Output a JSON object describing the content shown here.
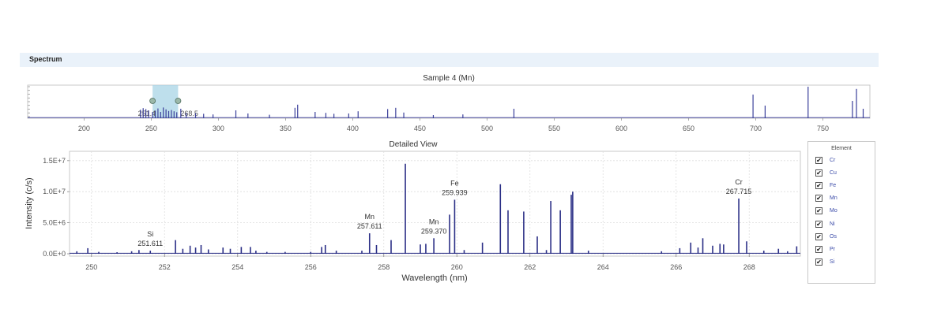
{
  "panel": {
    "title": "Spectrum"
  },
  "colors": {
    "series": "#2b2f86",
    "overview_series": "#3a3f9a",
    "selection": "#a8d4e6",
    "header_bg": "#eaf2fa"
  },
  "legend": {
    "title": "Element",
    "items": [
      {
        "label": "Cr",
        "checked": true
      },
      {
        "label": "Cu",
        "checked": true
      },
      {
        "label": "Fe",
        "checked": true
      },
      {
        "label": "Mn",
        "checked": true
      },
      {
        "label": "Mo",
        "checked": true
      },
      {
        "label": "Ni",
        "checked": true
      },
      {
        "label": "Os",
        "checked": true
      },
      {
        "label": "Pr",
        "checked": true
      },
      {
        "label": "Si",
        "checked": true
      }
    ]
  },
  "chart_data": [
    {
      "id": "overview",
      "type": "bar",
      "title": "Sample 4 (Mn)",
      "xlabel": "",
      "ylabel": "",
      "xlim": [
        158,
        785
      ],
      "ylim": [
        0,
        1
      ],
      "xticks": [
        200,
        250,
        300,
        350,
        400,
        450,
        500,
        550,
        600,
        650,
        700,
        750
      ],
      "grid": false,
      "selection": {
        "range": [
          251,
          270
        ],
        "labels": [
          "251.4",
          "268.5"
        ]
      },
      "peaks": [
        [
          242,
          0.27
        ],
        [
          244,
          0.32
        ],
        [
          246,
          0.29
        ],
        [
          248,
          0.25
        ],
        [
          251,
          0.2
        ],
        [
          253,
          0.24
        ],
        [
          255,
          0.31
        ],
        [
          257,
          0.2
        ],
        [
          259,
          0.34
        ],
        [
          261,
          0.28
        ],
        [
          263,
          0.23
        ],
        [
          265,
          0.26
        ],
        [
          267,
          0.22
        ],
        [
          269,
          0.19
        ],
        [
          272,
          0.3
        ],
        [
          276,
          0.17
        ],
        [
          283,
          0.16
        ],
        [
          289,
          0.14
        ],
        [
          296,
          0.12
        ],
        [
          313,
          0.25
        ],
        [
          322,
          0.15
        ],
        [
          338,
          0.11
        ],
        [
          357,
          0.33
        ],
        [
          359,
          0.43
        ],
        [
          372,
          0.2
        ],
        [
          380,
          0.17
        ],
        [
          386,
          0.14
        ],
        [
          397,
          0.15
        ],
        [
          404,
          0.22
        ],
        [
          426,
          0.29
        ],
        [
          432,
          0.33
        ],
        [
          438,
          0.18
        ],
        [
          460,
          0.1
        ],
        [
          482,
          0.12
        ],
        [
          520,
          0.3
        ],
        [
          698,
          0.75
        ],
        [
          707,
          0.4
        ],
        [
          739,
          1.0
        ],
        [
          772,
          0.55
        ],
        [
          775,
          0.93
        ],
        [
          780,
          0.3
        ]
      ]
    },
    {
      "id": "detail",
      "type": "bar",
      "title": "Detailed View",
      "xlabel": "Wavelength (nm)",
      "ylabel": "Intensity (c/s)",
      "xlim": [
        249.4,
        269.4
      ],
      "ylim": [
        0,
        16500000
      ],
      "xticks": [
        250,
        252,
        254,
        256,
        258,
        260,
        262,
        264,
        266,
        268
      ],
      "yticks": [
        {
          "value": 0,
          "label": "0.0E+0"
        },
        {
          "value": 5000000,
          "label": "5.0E+6"
        },
        {
          "value": 10000000,
          "label": "1.0E+7"
        },
        {
          "value": 15000000,
          "label": "1.5E+7"
        }
      ],
      "grid": true,
      "peaks": [
        [
          249.6,
          400000
        ],
        [
          249.9,
          900000
        ],
        [
          250.2,
          300000
        ],
        [
          250.7,
          250000
        ],
        [
          251.1,
          400000
        ],
        [
          251.3,
          600000
        ],
        [
          251.611,
          500000
        ],
        [
          252.3,
          2200000
        ],
        [
          252.5,
          800000
        ],
        [
          252.7,
          1300000
        ],
        [
          252.85,
          1000000
        ],
        [
          253.0,
          1400000
        ],
        [
          253.2,
          700000
        ],
        [
          253.6,
          1000000
        ],
        [
          253.8,
          800000
        ],
        [
          254.1,
          1100000
        ],
        [
          254.35,
          1100000
        ],
        [
          254.5,
          500000
        ],
        [
          254.8,
          300000
        ],
        [
          255.3,
          300000
        ],
        [
          256.0,
          300000
        ],
        [
          256.3,
          1100000
        ],
        [
          256.4,
          1400000
        ],
        [
          256.7,
          500000
        ],
        [
          257.4,
          500000
        ],
        [
          257.611,
          3300000
        ],
        [
          257.8,
          1400000
        ],
        [
          258.2,
          2200000
        ],
        [
          258.59,
          14500000
        ],
        [
          259.0,
          1500000
        ],
        [
          259.15,
          1600000
        ],
        [
          259.37,
          2500000
        ],
        [
          259.8,
          6300000
        ],
        [
          259.939,
          8700000
        ],
        [
          260.2,
          600000
        ],
        [
          260.7,
          1800000
        ],
        [
          261.19,
          11200000
        ],
        [
          261.4,
          7000000
        ],
        [
          261.83,
          6800000
        ],
        [
          262.2,
          2800000
        ],
        [
          262.45,
          600000
        ],
        [
          262.57,
          8500000
        ],
        [
          262.83,
          7000000
        ],
        [
          263.13,
          9500000
        ],
        [
          263.17,
          10000000
        ],
        [
          263.6,
          500000
        ],
        [
          265.6,
          400000
        ],
        [
          266.1,
          900000
        ],
        [
          266.4,
          1800000
        ],
        [
          266.6,
          1000000
        ],
        [
          266.73,
          2500000
        ],
        [
          267.0,
          1300000
        ],
        [
          267.2,
          1600000
        ],
        [
          267.3,
          1500000
        ],
        [
          267.715,
          8900000
        ],
        [
          267.93,
          2000000
        ],
        [
          268.4,
          500000
        ],
        [
          268.8,
          800000
        ],
        [
          269.05,
          400000
        ],
        [
          269.3,
          1200000
        ]
      ],
      "annotations": [
        {
          "element": "Si",
          "wavelength": "251.611",
          "x": 251.611,
          "y": 500000
        },
        {
          "element": "Mn",
          "wavelength": "257.611",
          "x": 257.611,
          "y": 3300000
        },
        {
          "element": "Mn",
          "wavelength": "259.370",
          "x": 259.37,
          "y": 2500000
        },
        {
          "element": "Fe",
          "wavelength": "259.939",
          "x": 259.939,
          "y": 8700000
        },
        {
          "element": "Cr",
          "wavelength": "267.715",
          "x": 267.715,
          "y": 8900000
        }
      ]
    }
  ]
}
